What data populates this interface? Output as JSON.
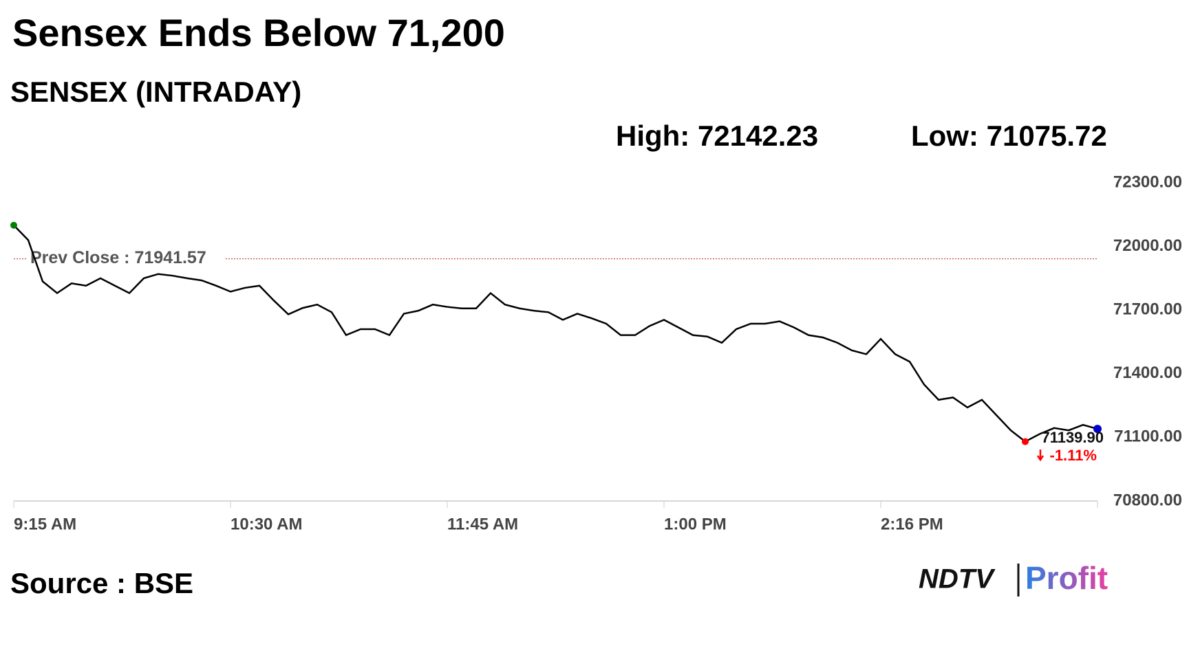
{
  "chart_data": {
    "type": "line",
    "title": "Sensex Ends Below 71,200",
    "subtitle": "SENSEX (INTRADAY)",
    "high_label": "High: 72142.23",
    "low_label": "Low: 71075.72",
    "prev_close": 71941.57,
    "prev_close_label": "Prev Close : 71941.57",
    "close_label": "71139.90",
    "change_label": "-1.11%",
    "source": "Source : BSE",
    "logo": {
      "brand": "NDTV",
      "product": "Profit"
    },
    "categories": [
      "9:15 AM",
      null,
      null,
      null,
      null,
      null,
      null,
      null,
      null,
      null,
      null,
      null,
      null,
      null,
      null,
      "10:30 AM",
      null,
      null,
      null,
      null,
      null,
      null,
      null,
      null,
      null,
      null,
      null,
      null,
      null,
      null,
      "11:45 AM",
      null,
      null,
      null,
      null,
      null,
      null,
      null,
      null,
      null,
      null,
      null,
      null,
      null,
      null,
      "1:00 PM",
      null,
      null,
      null,
      null,
      null,
      null,
      null,
      null,
      null,
      null,
      null,
      null,
      null,
      null,
      "2:16 PM",
      null,
      null,
      null,
      null,
      null,
      null,
      null,
      null,
      null,
      null,
      null,
      null,
      null,
      null,
      null
    ],
    "series": [
      {
        "name": "SENSEX",
        "color": "#000000",
        "values": [
          72100,
          72030,
          71835,
          71780,
          71826,
          71815,
          71850,
          71815,
          71780,
          71850,
          71870,
          71862,
          71850,
          71840,
          71815,
          71787,
          71805,
          71815,
          71745,
          71680,
          71710,
          71726,
          71690,
          71582,
          71610,
          71610,
          71582,
          71683,
          71697,
          71726,
          71715,
          71708,
          71708,
          71780,
          71726,
          71708,
          71697,
          71690,
          71654,
          71683,
          71661,
          71636,
          71582,
          71582,
          71625,
          71654,
          71618,
          71582,
          71575,
          71546,
          71610,
          71636,
          71636,
          71647,
          71618,
          71582,
          71571,
          71546,
          71510,
          71492,
          71564,
          71492,
          71457,
          71349,
          71277,
          71288,
          71241,
          71277,
          71205,
          71133,
          71080,
          71116,
          71144,
          71133,
          71159,
          71139.9
        ]
      }
    ],
    "ylim": [
      70800,
      72300
    ],
    "yticks": [
      {
        "value": 70800,
        "label": "70800.00"
      },
      {
        "value": 71100,
        "label": "71100.00"
      },
      {
        "value": 71400,
        "label": "71400.00"
      },
      {
        "value": 71700,
        "label": "71700.00"
      },
      {
        "value": 72000,
        "label": "72000.00"
      },
      {
        "value": 72300,
        "label": "72300.00"
      }
    ],
    "prev_close_color": "#b22222",
    "high_color": "#008000",
    "low_color": "#ff0000",
    "last_color": "#0000cc"
  }
}
